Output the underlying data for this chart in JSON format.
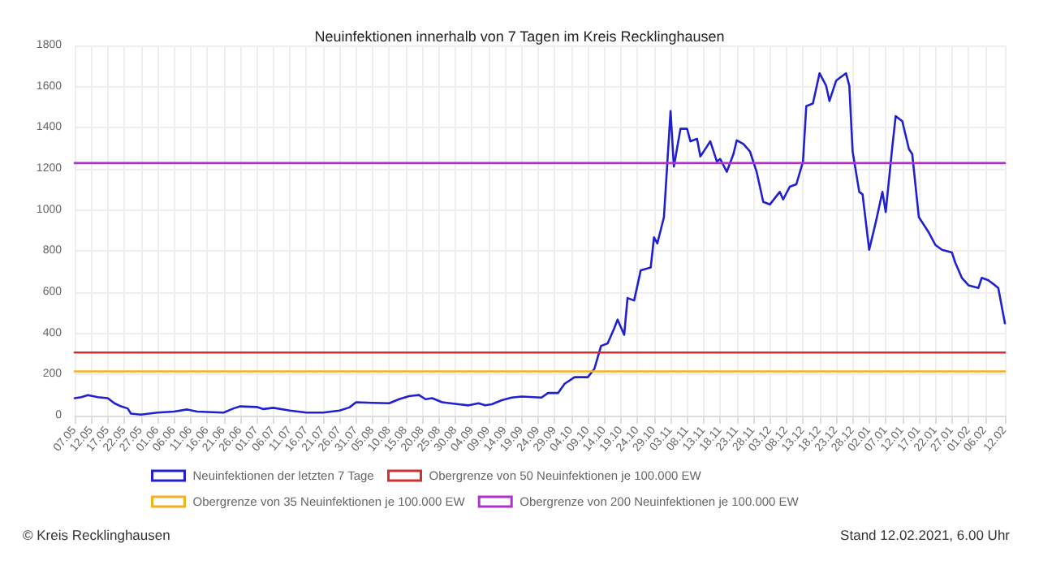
{
  "chart_data": {
    "type": "line",
    "title": "Neuinfektionen innerhalb von 7 Tagen im Kreis Recklinghausen",
    "annotations": [
      "© Kreis Recklinghausen",
      "Stand 12.02.2021, 6.00 Uhr"
    ],
    "xlim": [
      "2020-05-07",
      "2021-02-12"
    ],
    "xticks": [
      {
        "value": "2020-05-07",
        "label": "07.05"
      },
      {
        "value": "2020-05-12",
        "label": "12.05"
      },
      {
        "value": "2020-05-17",
        "label": "17.05"
      },
      {
        "value": "2020-05-22",
        "label": "22.05"
      },
      {
        "value": "2020-05-27",
        "label": "27.05"
      },
      {
        "value": "2020-06-01",
        "label": "01.06"
      },
      {
        "value": "2020-06-06",
        "label": "06.06"
      },
      {
        "value": "2020-06-11",
        "label": "11.06"
      },
      {
        "value": "2020-06-16",
        "label": "16.06"
      },
      {
        "value": "2020-06-21",
        "label": "21.06"
      },
      {
        "value": "2020-06-26",
        "label": "26.06"
      },
      {
        "value": "2020-07-01",
        "label": "01.07"
      },
      {
        "value": "2020-07-06",
        "label": "06.07"
      },
      {
        "value": "2020-07-11",
        "label": "11.07"
      },
      {
        "value": "2020-07-16",
        "label": "16.07"
      },
      {
        "value": "2020-07-21",
        "label": "21.07"
      },
      {
        "value": "2020-07-26",
        "label": "26.07"
      },
      {
        "value": "2020-07-31",
        "label": "31.07"
      },
      {
        "value": "2020-08-05",
        "label": "05.08"
      },
      {
        "value": "2020-08-10",
        "label": "10.08"
      },
      {
        "value": "2020-08-15",
        "label": "15.08"
      },
      {
        "value": "2020-08-20",
        "label": "20.08"
      },
      {
        "value": "2020-08-25",
        "label": "25.08"
      },
      {
        "value": "2020-08-30",
        "label": "30.08"
      },
      {
        "value": "2020-09-04",
        "label": "04.09"
      },
      {
        "value": "2020-09-09",
        "label": "09.09"
      },
      {
        "value": "2020-09-14",
        "label": "14.09"
      },
      {
        "value": "2020-09-19",
        "label": "19.09"
      },
      {
        "value": "2020-09-24",
        "label": "24.09"
      },
      {
        "value": "2020-09-29",
        "label": "29.09"
      },
      {
        "value": "2020-10-04",
        "label": "04.10"
      },
      {
        "value": "2020-10-09",
        "label": "09.10"
      },
      {
        "value": "2020-10-14",
        "label": "14.10"
      },
      {
        "value": "2020-10-19",
        "label": "19.10"
      },
      {
        "value": "2020-10-24",
        "label": "24.10"
      },
      {
        "value": "2020-10-29",
        "label": "29.10"
      },
      {
        "value": "2020-11-03",
        "label": "03.11"
      },
      {
        "value": "2020-11-08",
        "label": "08.11"
      },
      {
        "value": "2020-11-13",
        "label": "13.11"
      },
      {
        "value": "2020-11-18",
        "label": "18.11"
      },
      {
        "value": "2020-11-23",
        "label": "23.11"
      },
      {
        "value": "2020-11-28",
        "label": "28.11"
      },
      {
        "value": "2020-12-03",
        "label": "03.12"
      },
      {
        "value": "2020-12-08",
        "label": "08.12"
      },
      {
        "value": "2020-12-13",
        "label": "13.12"
      },
      {
        "value": "2020-12-18",
        "label": "18.12"
      },
      {
        "value": "2020-12-23",
        "label": "23.12"
      },
      {
        "value": "2020-12-28",
        "label": "28.12"
      },
      {
        "value": "2021-01-02",
        "label": "02.01"
      },
      {
        "value": "2021-01-07",
        "label": "07.01"
      },
      {
        "value": "2021-01-12",
        "label": "12.01"
      },
      {
        "value": "2021-01-17",
        "label": "17.01"
      },
      {
        "value": "2021-01-22",
        "label": "22.01"
      },
      {
        "value": "2021-01-27",
        "label": "27.01"
      },
      {
        "value": "2021-02-01",
        "label": "01.02"
      },
      {
        "value": "2021-02-06",
        "label": "06.02"
      },
      {
        "value": "2021-02-12",
        "label": "12.02"
      }
    ],
    "ylim": [
      0,
      1800
    ],
    "yticks": [
      0,
      200,
      400,
      600,
      800,
      1000,
      1200,
      1400,
      1600,
      1800
    ],
    "grid": true,
    "legend": "bottom",
    "marker": "none",
    "line_style": "solid",
    "series": [
      {
        "name": "Neuinfektionen der letzten 7 Tage",
        "color": "#2020d0",
        "x": [
          "2020-05-07",
          "2020-05-09",
          "2020-05-11",
          "2020-05-14",
          "2020-05-17",
          "2020-05-19",
          "2020-05-21",
          "2020-05-23",
          "2020-05-24",
          "2020-05-27",
          "2020-06-01",
          "2020-06-06",
          "2020-06-10",
          "2020-06-13",
          "2020-06-16",
          "2020-06-21",
          "2020-06-24",
          "2020-06-26",
          "2020-07-01",
          "2020-07-03",
          "2020-07-06",
          "2020-07-11",
          "2020-07-16",
          "2020-07-21",
          "2020-07-26",
          "2020-07-29",
          "2020-07-31",
          "2020-08-05",
          "2020-08-10",
          "2020-08-13",
          "2020-08-16",
          "2020-08-19",
          "2020-08-21",
          "2020-08-23",
          "2020-08-26",
          "2020-08-31",
          "2020-09-03",
          "2020-09-06",
          "2020-09-08",
          "2020-09-10",
          "2020-09-13",
          "2020-09-16",
          "2020-09-19",
          "2020-09-25",
          "2020-09-27",
          "2020-09-30",
          "2020-10-02",
          "2020-10-05",
          "2020-10-09",
          "2020-10-11",
          "2020-10-13",
          "2020-10-15",
          "2020-10-17",
          "2020-10-18",
          "2020-10-20",
          "2020-10-21",
          "2020-10-23",
          "2020-10-25",
          "2020-10-28",
          "2020-10-29",
          "2020-10-30",
          "2020-11-01",
          "2020-11-03",
          "2020-11-04",
          "2020-11-06",
          "2020-11-08",
          "2020-11-09",
          "2020-11-11",
          "2020-11-12",
          "2020-11-14",
          "2020-11-15",
          "2020-11-17",
          "2020-11-18",
          "2020-11-20",
          "2020-11-22",
          "2020-11-23",
          "2020-11-25",
          "2020-11-27",
          "2020-11-29",
          "2020-12-01",
          "2020-12-03",
          "2020-12-06",
          "2020-12-07",
          "2020-12-09",
          "2020-12-11",
          "2020-12-13",
          "2020-12-14",
          "2020-12-16",
          "2020-12-18",
          "2020-12-20",
          "2020-12-21",
          "2020-12-23",
          "2020-12-24",
          "2020-12-26",
          "2020-12-27",
          "2020-12-28",
          "2020-12-30",
          "2020-12-31",
          "2021-01-02",
          "2021-01-04",
          "2021-01-06",
          "2021-01-07",
          "2021-01-09",
          "2021-01-10",
          "2021-01-12",
          "2021-01-14",
          "2021-01-15",
          "2021-01-17",
          "2021-01-20",
          "2021-01-22",
          "2021-01-24",
          "2021-01-27",
          "2021-01-28",
          "2021-01-30",
          "2021-02-01",
          "2021-02-04",
          "2021-02-05",
          "2021-02-07",
          "2021-02-09",
          "2021-02-10",
          "2021-02-12"
        ],
        "values": [
          85,
          90,
          100,
          90,
          85,
          60,
          45,
          35,
          10,
          5,
          15,
          20,
          30,
          20,
          18,
          15,
          35,
          45,
          42,
          32,
          38,
          25,
          15,
          15,
          25,
          40,
          65,
          62,
          60,
          80,
          95,
          100,
          80,
          85,
          65,
          55,
          50,
          60,
          50,
          55,
          75,
          88,
          93,
          88,
          110,
          110,
          155,
          187,
          187,
          228,
          339,
          351,
          425,
          467,
          393,
          572,
          560,
          707,
          720,
          867,
          837,
          965,
          1481,
          1211,
          1395,
          1395,
          1334,
          1346,
          1260,
          1309,
          1334,
          1235,
          1248,
          1186,
          1272,
          1339,
          1321,
          1284,
          1186,
          1039,
          1027,
          1088,
          1051,
          1113,
          1125,
          1235,
          1505,
          1518,
          1665,
          1604,
          1530,
          1628,
          1641,
          1665,
          1604,
          1284,
          1088,
          1076,
          806,
          941,
          1088,
          990,
          1309,
          1456,
          1432,
          1297,
          1272,
          965,
          891,
          830,
          806,
          793,
          744,
          670,
          634,
          621,
          670,
          658,
          634,
          621,
          449
        ]
      },
      {
        "name": "Obergrenze von 50 Neuinfektionen je 100.000 EW",
        "color": "#d03030",
        "x": [
          "2020-05-07",
          "2021-02-12"
        ],
        "values": [
          307,
          307
        ]
      },
      {
        "name": "Obergrenze von 35 Neuinfektionen je 100.000 EW",
        "color": "#f2b21e",
        "x": [
          "2020-05-07",
          "2021-02-12"
        ],
        "values": [
          215,
          215
        ]
      },
      {
        "name": "Obergrenze von 200 Neuinfektionen je 100.000 EW",
        "color": "#b030d0",
        "x": [
          "2020-05-07",
          "2021-02-12"
        ],
        "values": [
          1228,
          1228
        ]
      }
    ]
  }
}
